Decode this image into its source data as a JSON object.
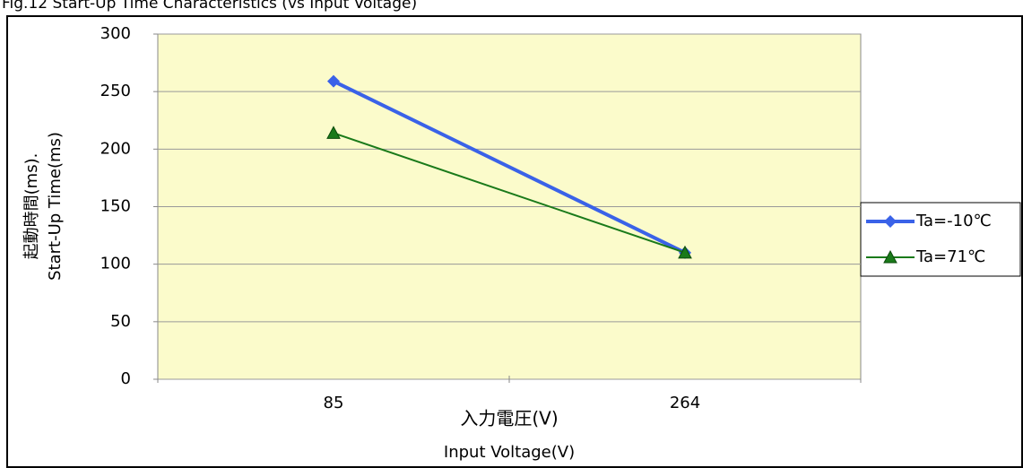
{
  "chart_data": {
    "type": "line",
    "title": "Fig.12 Start-Up Time Characteristics (vs Input Voltage)",
    "y_label": [
      "起動時間(ms).",
      "Start-Up Time(ms)"
    ],
    "x_label": [
      "入力電圧(V)",
      "Input Voltage(V)"
    ],
    "categories": [
      "85",
      "264"
    ],
    "series": [
      {
        "name": "Ta=-10℃",
        "color": "#3a62e8",
        "marker": "diamond",
        "width": 4,
        "values": [
          259,
          110
        ]
      },
      {
        "name": "Ta=71℃",
        "color": "#1a7a1a",
        "marker": "triangle",
        "width": 2,
        "values": [
          214,
          110
        ]
      }
    ],
    "ylim": [
      0,
      300
    ],
    "yticks": [
      0,
      50,
      100,
      150,
      200,
      250,
      300
    ],
    "grid": true,
    "legend": "right"
  }
}
